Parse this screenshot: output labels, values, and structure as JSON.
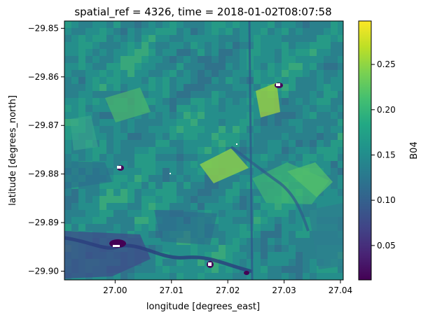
{
  "chart_data": {
    "type": "heatmap",
    "title": "spatial_ref = 4326, time = 2018-01-02T08:07:58",
    "xlabel": "longitude [degrees_east]",
    "ylabel": "latitude [degrees_north]",
    "xlim": [
      26.991,
      27.0405
    ],
    "ylim": [
      -29.9018,
      -29.8485
    ],
    "x_ticks": [
      {
        "value": 27.0,
        "label": "27.00"
      },
      {
        "value": 27.01,
        "label": "27.01"
      },
      {
        "value": 27.02,
        "label": "27.02"
      },
      {
        "value": 27.03,
        "label": "27.03"
      },
      {
        "value": 27.04,
        "label": "27.04"
      }
    ],
    "y_ticks": [
      {
        "value": -29.85,
        "label": "−29.85"
      },
      {
        "value": -29.86,
        "label": "−29.86"
      },
      {
        "value": -29.87,
        "label": "−29.87"
      },
      {
        "value": -29.88,
        "label": "−29.88"
      },
      {
        "value": -29.89,
        "label": "−29.89"
      },
      {
        "value": -29.9,
        "label": "−29.90"
      }
    ],
    "colorbar": {
      "label": "B04",
      "colormap": "viridis",
      "range": [
        0.012,
        0.298
      ],
      "ticks": [
        {
          "value": 0.05,
          "label": "0.05"
        },
        {
          "value": 0.1,
          "label": "0.10"
        },
        {
          "value": 0.15,
          "label": "0.15"
        },
        {
          "value": 0.2,
          "label": "0.20"
        },
        {
          "value": 0.25,
          "label": "0.25"
        }
      ]
    },
    "grid": false,
    "legend": "none"
  }
}
